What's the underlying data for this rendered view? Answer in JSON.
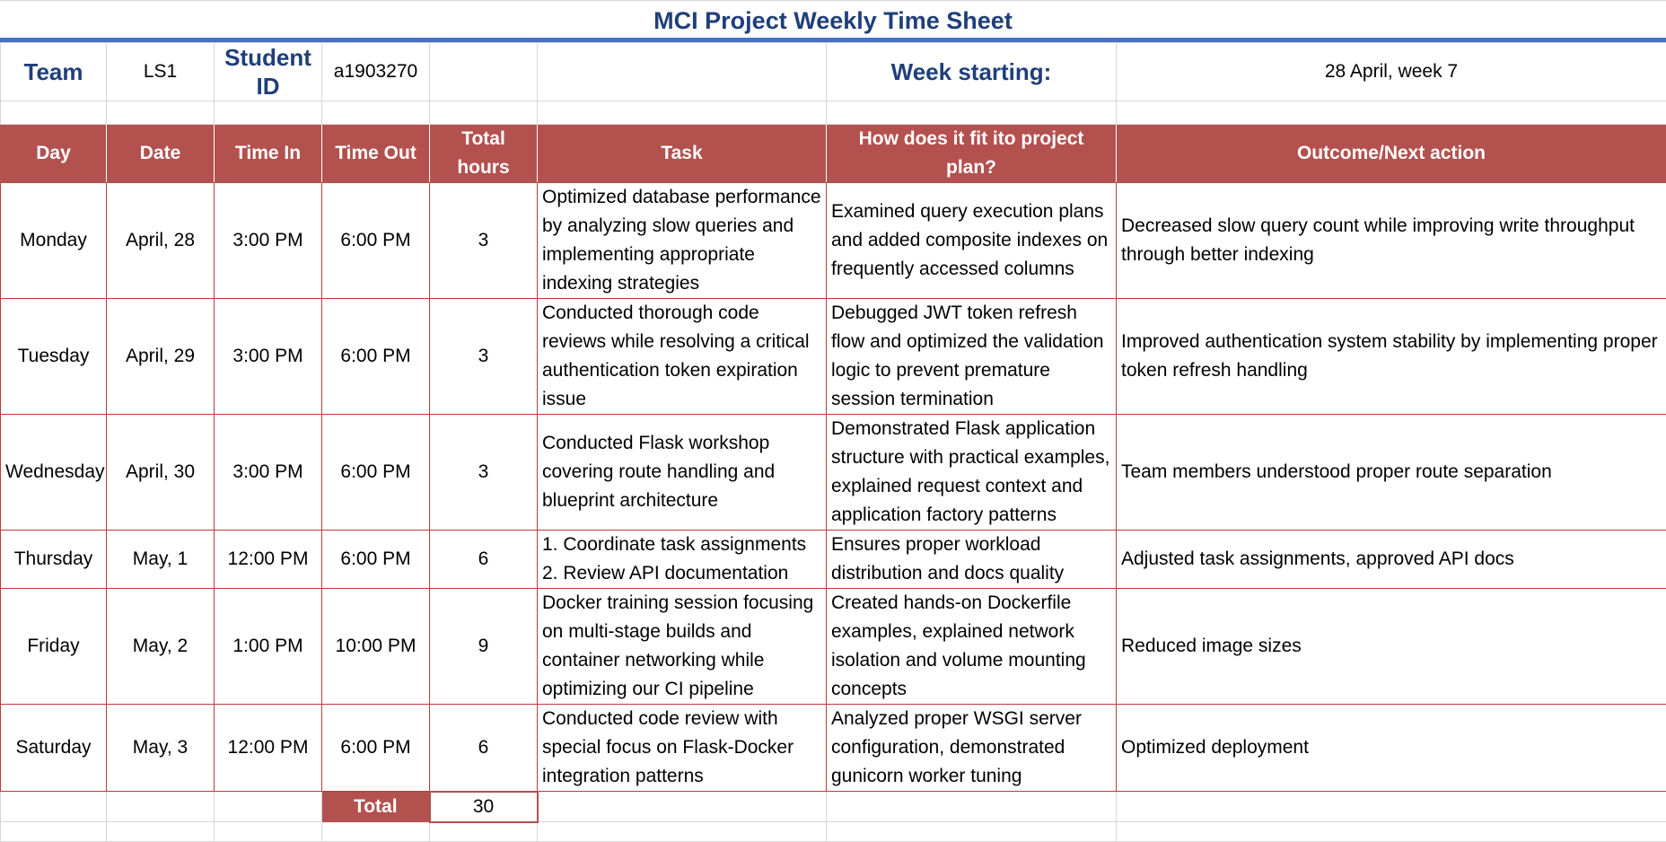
{
  "title": "MCI Project Weekly Time Sheet",
  "meta": {
    "team_label": "Team",
    "team_value": "LS1",
    "student_label": "Student ID",
    "student_value": "a1903270",
    "week_label": "Week starting:",
    "week_value": "28 April, week 7"
  },
  "columns": [
    "Day",
    "Date",
    "Time In",
    "Time Out",
    "Total hours",
    "Task",
    "How does it fit ito project plan?",
    "Outcome/Next action"
  ],
  "rows": [
    {
      "day": "Monday",
      "date": "April, 28",
      "time_in": "3:00 PM",
      "time_out": "6:00 PM",
      "total": "3",
      "task": "Optimized database performance by analyzing slow queries and implementing appropriate indexing strategies",
      "fit": "Examined query execution plans and added composite indexes on frequently accessed columns",
      "outcome": "Decreased slow query count while improving write throughput through better indexing"
    },
    {
      "day": "Tuesday",
      "date": "April, 29",
      "time_in": "3:00 PM",
      "time_out": "6:00 PM",
      "total": "3",
      "task": "Conducted thorough code reviews while resolving a critical authentication token expiration issue",
      "fit": "Debugged JWT token refresh flow and optimized the validation logic to prevent premature session termination",
      "outcome": "Improved authentication system stability by implementing proper token refresh handling"
    },
    {
      "day": "Wednesday",
      "date": "April, 30",
      "time_in": "3:00 PM",
      "time_out": "6:00 PM",
      "total": "3",
      "task": "Conducted Flask workshop covering route handling and blueprint architecture",
      "fit": "Demonstrated Flask application structure with practical examples, explained request context and application factory patterns",
      "outcome": "Team members understood proper route separation"
    },
    {
      "day": "Thursday",
      "date": "May, 1",
      "time_in": "12:00 PM",
      "time_out": "6:00 PM",
      "total": "6",
      "task": "1. Coordinate task assignments 2. Review API documentation",
      "fit": "Ensures proper workload distribution and docs quality",
      "outcome": "Adjusted task assignments, approved API docs"
    },
    {
      "day": "Friday",
      "date": "May, 2",
      "time_in": "1:00 PM",
      "time_out": "10:00 PM",
      "total": "9",
      "task": "Docker training session focusing on multi-stage builds and container networking while optimizing our CI pipeline",
      "fit": "Created hands-on Dockerfile examples, explained network isolation and volume mounting concepts",
      "outcome": "Reduced image sizes"
    },
    {
      "day": "Saturday",
      "date": "May, 3",
      "time_in": "12:00 PM",
      "time_out": "6:00 PM",
      "total": "6",
      "task": "Conducted code review with special focus on Flask-Docker integration patterns",
      "fit": "Analyzed proper WSGI server configuration, demonstrated gunicorn worker tuning",
      "outcome": "Optimized deployment"
    }
  ],
  "total_label": "Total",
  "total_value": "30"
}
